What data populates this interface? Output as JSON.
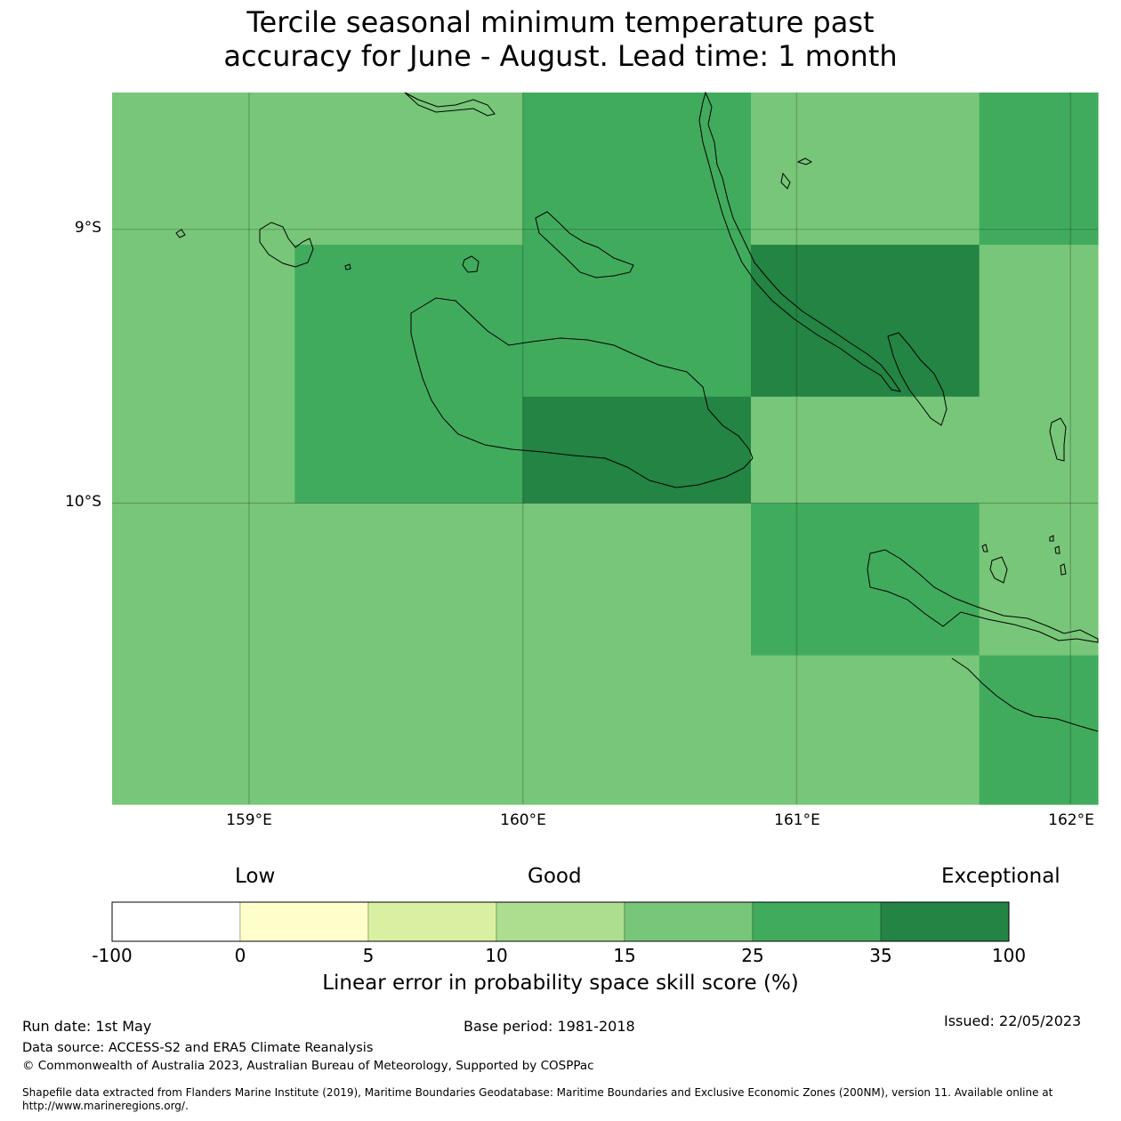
{
  "title": {
    "line1": "Tercile seasonal minimum temperature past",
    "line2": "accuracy for June - August. Lead time: 1 month"
  },
  "map": {
    "lat_labels": [
      "9°S",
      "10°S"
    ],
    "lon_labels": [
      "159°E",
      "160°E",
      "161°E",
      "162°E"
    ],
    "extent": {
      "lon": [
        158.5,
        162.1
      ],
      "lat": [
        -11.1,
        -8.5
      ]
    },
    "grid_cells": [
      {
        "lon": [
          158.5,
          159.167
        ],
        "lat": [
          -9.056,
          -8.5
        ],
        "class": 25
      },
      {
        "lon": [
          159.167,
          160.0
        ],
        "lat": [
          -9.056,
          -8.5
        ],
        "class": 25
      },
      {
        "lon": [
          160.0,
          160.833
        ],
        "lat": [
          -9.056,
          -8.5
        ],
        "class": 35
      },
      {
        "lon": [
          160.833,
          161.667
        ],
        "lat": [
          -9.056,
          -8.5
        ],
        "class": 25
      },
      {
        "lon": [
          161.667,
          162.1
        ],
        "lat": [
          -9.056,
          -8.5
        ],
        "class": 35
      },
      {
        "lon": [
          158.5,
          159.167
        ],
        "lat": [
          -9.611,
          -9.056
        ],
        "class": 25
      },
      {
        "lon": [
          159.167,
          160.0
        ],
        "lat": [
          -9.611,
          -9.056
        ],
        "class": 35
      },
      {
        "lon": [
          160.0,
          160.833
        ],
        "lat": [
          -9.611,
          -9.056
        ],
        "class": 35
      },
      {
        "lon": [
          160.833,
          161.667
        ],
        "lat": [
          -9.611,
          -9.056
        ],
        "class": 100
      },
      {
        "lon": [
          161.667,
          162.1
        ],
        "lat": [
          -9.611,
          -9.056
        ],
        "class": 25
      },
      {
        "lon": [
          158.5,
          159.167
        ],
        "lat": [
          -10.0,
          -9.611
        ],
        "class": 25
      },
      {
        "lon": [
          159.167,
          160.0
        ],
        "lat": [
          -10.0,
          -9.611
        ],
        "class": 35
      },
      {
        "lon": [
          160.0,
          160.833
        ],
        "lat": [
          -10.0,
          -9.611
        ],
        "class": 100
      },
      {
        "lon": [
          160.833,
          161.667
        ],
        "lat": [
          -10.0,
          -9.611
        ],
        "class": 25
      },
      {
        "lon": [
          161.667,
          162.1
        ],
        "lat": [
          -10.0,
          -9.611
        ],
        "class": 25
      },
      {
        "lon": [
          158.5,
          160.833
        ],
        "lat": [
          -10.556,
          -10.0
        ],
        "class": 25
      },
      {
        "lon": [
          160.833,
          161.667
        ],
        "lat": [
          -10.556,
          -10.0
        ],
        "class": 35
      },
      {
        "lon": [
          161.667,
          162.1
        ],
        "lat": [
          -10.556,
          -10.0
        ],
        "class": 25
      },
      {
        "lon": [
          158.5,
          161.667
        ],
        "lat": [
          -11.1,
          -10.556
        ],
        "class": 25
      },
      {
        "lon": [
          161.667,
          162.1
        ],
        "lat": [
          -11.1,
          -10.556
        ],
        "class": 35
      }
    ]
  },
  "legend": {
    "categories": [
      "Low",
      "Good",
      "Exceptional"
    ],
    "ticks": [
      "-100",
      "0",
      "5",
      "10",
      "15",
      "25",
      "35",
      "100"
    ],
    "colors": [
      "#ffffff",
      "#ffffcc",
      "#d9f0a3",
      "#addd8e",
      "#78c679",
      "#41ab5d",
      "#238443"
    ],
    "label": "Linear error in probability space skill score (%)"
  },
  "footer": {
    "run_date": "Run date: 1st May",
    "base_period": "Base period: 1981-2018",
    "issued": "Issued: 22/05/2023",
    "data_source": "Data source: ACCESS-S2 and ERA5 Climate Reanalysis",
    "copyright": "© Commonwealth of Australia 2023, Australian Bureau of Meteorology, Supported by COSPPac",
    "shapefile": "Shapefile data extracted from Flanders Marine Institute (2019), Maritime Boundaries Geodatabase: Maritime Boundaries and Exclusive Economic Zones (200NM), version 11. Available online at http://www.marineregions.org/."
  }
}
